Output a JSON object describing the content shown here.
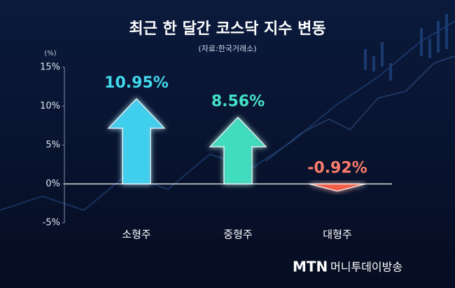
{
  "chart_data": {
    "type": "bar",
    "title": "최근 한 달간 코스닥 지수 변동",
    "subtitle": "(자료:한국거래소)",
    "y_unit": "(%)",
    "categories": [
      "소형주",
      "중형주",
      "대형주"
    ],
    "values": [
      10.95,
      8.56,
      -0.92
    ],
    "value_labels": [
      "10.95%",
      "8.56%",
      "-0.92%"
    ],
    "colors": [
      "#3fd3f2",
      "#3fe0c2",
      "#ff5a3c"
    ],
    "label_colors": [
      "#42d8ec",
      "#46e2c8",
      "#ff7d6c"
    ],
    "ylim": [
      -5,
      15
    ],
    "yticks": [
      {
        "value": -5,
        "label": "-5%"
      },
      {
        "value": 0,
        "label": "0%"
      },
      {
        "value": 5,
        "label": "5%"
      },
      {
        "value": 10,
        "label": "10%"
      },
      {
        "value": 15,
        "label": "15%"
      }
    ],
    "grid": false
  },
  "footer": {
    "logo": "MTN",
    "text": "머니투데이방송"
  }
}
